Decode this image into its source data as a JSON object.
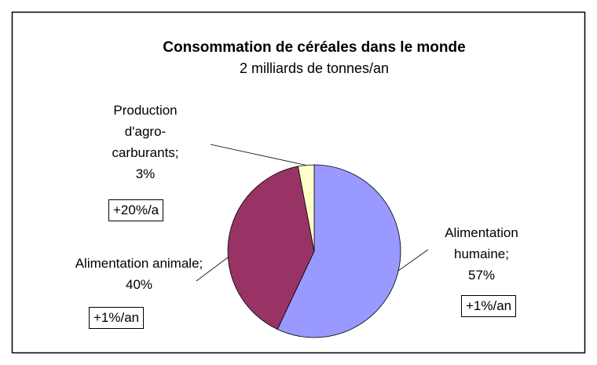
{
  "chart_data": {
    "type": "pie",
    "title": "Consommation de céréales dans le monde",
    "subtitle": "2 milliards de tonnes/an",
    "categories": [
      "Alimentation humaine",
      "Alimentation animale",
      "Production d'agro-carburants"
    ],
    "values": [
      57,
      40,
      3
    ],
    "value_labels": [
      "57%",
      "40%",
      "3%"
    ],
    "label_separator": ";",
    "colors": [
      "#9999ff",
      "#993366",
      "#ffffcc"
    ],
    "annotations": [
      "+1%/an",
      "+1%/an",
      "+20%/a"
    ]
  }
}
